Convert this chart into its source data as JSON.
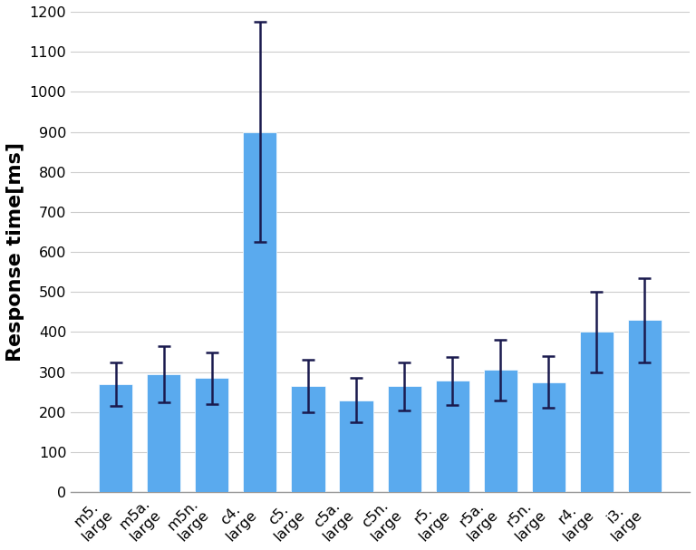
{
  "categories": [
    "m5.\nlarge",
    "m5a.\nlarge",
    "m5n.\nlarge",
    "c4.\nlarge",
    "c5.\nlarge",
    "c5a.\nlarge",
    "c5n.\nlarge",
    "r5.\nlarge",
    "r5a.\nlarge",
    "r5n.\nlarge",
    "r4.\nlarge",
    "i3.\nlarge"
  ],
  "values": [
    270,
    295,
    285,
    900,
    265,
    230,
    265,
    278,
    305,
    275,
    400,
    430
  ],
  "errors": [
    55,
    70,
    65,
    275,
    65,
    55,
    60,
    60,
    75,
    65,
    100,
    105
  ],
  "bar_color": "#5aaaee",
  "error_color": "#1a1a4e",
  "ylabel": "Response time[ms]",
  "ylim": [
    0,
    1200
  ],
  "yticks": [
    0,
    100,
    200,
    300,
    400,
    500,
    600,
    700,
    800,
    900,
    1000,
    1100,
    1200
  ],
  "grid_color": "#cccccc",
  "background_color": "#ffffff",
  "bar_width": 0.7,
  "ylabel_fontsize": 16,
  "tick_fontsize": 11.5,
  "xlabel_rotation": 45
}
